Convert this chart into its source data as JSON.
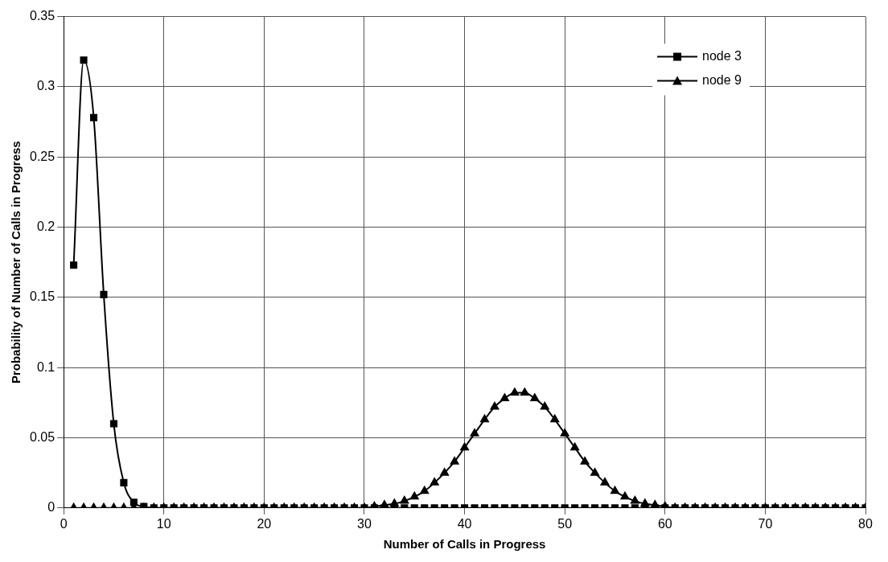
{
  "chart_data": {
    "type": "line",
    "xlabel": "Number of Calls in Progress",
    "ylabel": "Probability of Number of Calls in Progress",
    "x": [
      1,
      2,
      3,
      4,
      5,
      6,
      7,
      8,
      9,
      10,
      11,
      12,
      13,
      14,
      15,
      16,
      17,
      18,
      19,
      20,
      21,
      22,
      23,
      24,
      25,
      26,
      27,
      28,
      29,
      30,
      31,
      32,
      33,
      34,
      35,
      36,
      37,
      38,
      39,
      40,
      41,
      42,
      43,
      44,
      45,
      46,
      47,
      48,
      49,
      50,
      51,
      52,
      53,
      54,
      55,
      56,
      57,
      58,
      59,
      60,
      61,
      62,
      63,
      64,
      65,
      66,
      67,
      68,
      69,
      70,
      71,
      72,
      73,
      74,
      75,
      76,
      77,
      78,
      79,
      80
    ],
    "series": [
      {
        "name": "node 3",
        "color": "#000000",
        "marker": "square",
        "values": [
          0.173,
          0.319,
          0.278,
          0.152,
          0.06,
          0.018,
          0.004,
          0.001,
          0,
          0,
          0,
          0,
          0,
          0,
          0,
          0,
          0,
          0,
          0,
          0,
          0,
          0,
          0,
          0,
          0,
          0,
          0,
          0,
          0,
          0,
          0,
          0,
          0,
          0,
          0,
          0,
          0,
          0,
          0,
          0,
          0,
          0,
          0,
          0,
          0,
          0,
          0,
          0,
          0,
          0,
          0,
          0,
          0,
          0,
          0,
          0,
          0,
          0,
          0,
          0,
          0,
          0,
          0,
          0,
          0,
          0,
          0,
          0,
          0,
          0,
          0,
          0,
          0,
          0,
          0,
          0,
          0,
          0,
          0,
          0
        ]
      },
      {
        "name": "node 9",
        "color": "#000000",
        "marker": "triangle",
        "values": [
          0,
          0,
          0,
          0,
          0,
          0,
          0,
          0,
          0,
          0,
          0,
          0,
          0,
          0,
          0,
          0,
          0,
          0,
          0,
          0,
          0,
          0,
          0,
          0,
          0,
          0,
          0,
          0,
          0,
          0,
          0.001,
          0.002,
          0.003,
          0.005,
          0.008,
          0.012,
          0.018,
          0.025,
          0.033,
          0.043,
          0.053,
          0.063,
          0.072,
          0.078,
          0.082,
          0.082,
          0.078,
          0.072,
          0.063,
          0.053,
          0.043,
          0.033,
          0.025,
          0.018,
          0.012,
          0.008,
          0.005,
          0.003,
          0.002,
          0.001,
          0,
          0,
          0,
          0,
          0,
          0,
          0,
          0,
          0,
          0,
          0,
          0,
          0,
          0,
          0,
          0,
          0,
          0,
          0,
          0
        ]
      }
    ],
    "xlim": [
      0,
      80
    ],
    "xticks": [
      0,
      10,
      20,
      30,
      40,
      50,
      60,
      70,
      80
    ],
    "ylim": [
      0,
      0.35
    ],
    "yticks": [
      0,
      0.05,
      0.1,
      0.15,
      0.2,
      0.25,
      0.3,
      0.35
    ],
    "grid": true,
    "legend": "top right"
  }
}
